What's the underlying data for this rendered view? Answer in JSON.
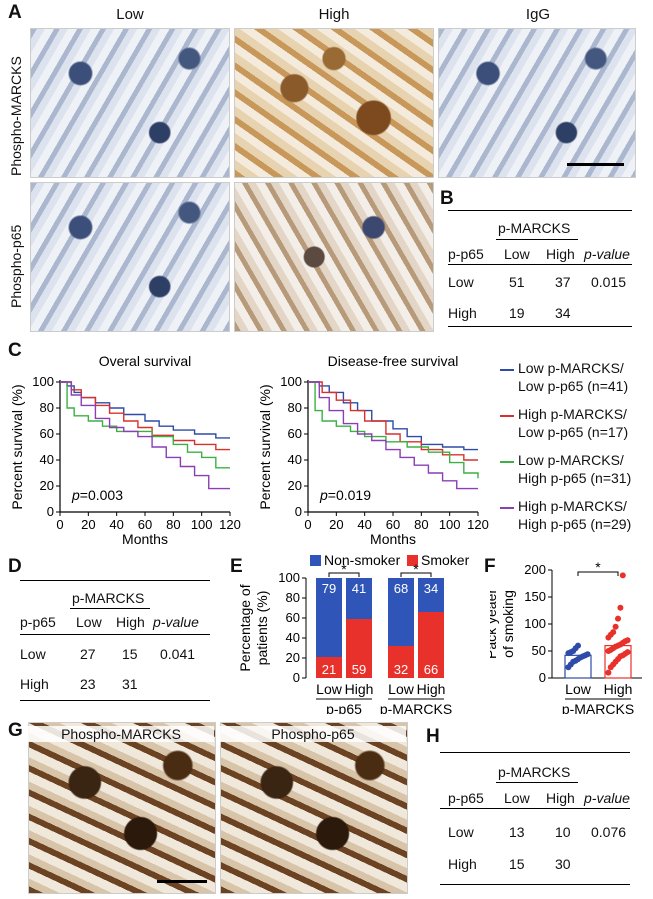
{
  "panels": {
    "A": "A",
    "B": "B",
    "C": "C",
    "D": "D",
    "E": "E",
    "F": "F",
    "G": "G",
    "H": "H"
  },
  "panelA": {
    "col_low": "Low",
    "col_high": "High",
    "col_igg": "IgG",
    "row_marcks": "Phospho-MARCKS",
    "row_p65": "Phospho-p65"
  },
  "tableB": {
    "group": "p-MARCKS",
    "rowhead": "p-p65",
    "col_low": "Low",
    "col_high": "High",
    "col_p": "p-value",
    "rows": [
      {
        "label": "Low",
        "low": "51",
        "high": "37",
        "p": "0.015"
      },
      {
        "label": "High",
        "low": "19",
        "high": "34",
        "p": ""
      }
    ]
  },
  "panelC": {
    "title_os": "Overal survival",
    "title_dfs": "Disease-free survival",
    "ylabel": "Percent survival (%)",
    "xlabel": "Months",
    "p_os": "p=0.003",
    "p_dfs": "p=0.019",
    "legend": [
      {
        "l1": "Low p-MARCKS/",
        "l2": "Low p-p65 (n=41)",
        "color": "#2e4ba8"
      },
      {
        "l1": "High p-MARCKS/",
        "l2": "Low p-p65 (n=17)",
        "color": "#d9302b"
      },
      {
        "l1": "Low p-MARCKS/",
        "l2": "High p-p65 (n=31)",
        "color": "#3cb043"
      },
      {
        "l1": "High p-MARCKS/",
        "l2": "High p-p65 (n=29)",
        "color": "#8a3fb5"
      }
    ]
  },
  "tableD": {
    "group": "p-MARCKS",
    "rowhead": "p-p65",
    "col_low": "Low",
    "col_high": "High",
    "col_p": "p-value",
    "rows": [
      {
        "label": "Low",
        "low": "27",
        "high": "15",
        "p": "0.041"
      },
      {
        "label": "High",
        "low": "23",
        "high": "31",
        "p": ""
      }
    ]
  },
  "panelE": {
    "legend_ns": "Non-smoker",
    "legend_s": "Smoker",
    "ylabel_1": "Percentage of",
    "ylabel_2": "patients (%)",
    "group1": "p-p65",
    "group2": "p-MARCKS",
    "sig": "*"
  },
  "panelF": {
    "ylabel_1": "Pack yeaer",
    "ylabel_2": "of smoking",
    "xgroup": "p-MARCKS",
    "sig": "*"
  },
  "panelG": {
    "label_marcks": "Phospho-MARCKS",
    "label_p65": "Phospho-p65"
  },
  "tableH": {
    "group": "p-MARCKS",
    "rowhead": "p-p65",
    "col_low": "Low",
    "col_high": "High",
    "col_p": "p-value",
    "rows": [
      {
        "label": "Low",
        "low": "13",
        "high": "10",
        "p": "0.076"
      },
      {
        "label": "High",
        "low": "15",
        "high": "30",
        "p": ""
      }
    ]
  },
  "chart_data": [
    {
      "type": "line",
      "title": "Overal survival",
      "xlabel": "Months",
      "ylabel": "Percent survival (%)",
      "xlim": [
        0,
        120
      ],
      "ylim": [
        0,
        100
      ],
      "xticks": [
        0,
        20,
        40,
        60,
        80,
        100,
        120
      ],
      "yticks": [
        0,
        20,
        40,
        60,
        80,
        100
      ],
      "annotation": "p=0.003",
      "series": [
        {
          "name": "Low p-MARCKS/Low p-p65 (n=41)",
          "color": "#2e4ba8",
          "x": [
            0,
            5,
            10,
            15,
            25,
            35,
            45,
            60,
            70,
            80,
            95,
            110,
            120
          ],
          "y": [
            100,
            97,
            92,
            88,
            84,
            80,
            75,
            70,
            66,
            63,
            60,
            57,
            57
          ]
        },
        {
          "name": "High p-MARCKS/Low p-p65 (n=17)",
          "color": "#d9302b",
          "x": [
            0,
            8,
            15,
            25,
            35,
            45,
            55,
            65,
            80,
            95,
            110,
            120
          ],
          "y": [
            100,
            94,
            88,
            82,
            76,
            70,
            65,
            59,
            55,
            52,
            48,
            48
          ]
        },
        {
          "name": "Low p-MARCKS/High p-p65 (n=31)",
          "color": "#3cb043",
          "x": [
            0,
            5,
            10,
            20,
            30,
            40,
            55,
            65,
            80,
            90,
            100,
            110,
            120
          ],
          "y": [
            100,
            80,
            74,
            70,
            66,
            62,
            62,
            58,
            52,
            46,
            42,
            34,
            34
          ]
        },
        {
          "name": "High p-MARCKS/High p-p65 (n=29)",
          "color": "#8a3fb5",
          "x": [
            0,
            8,
            15,
            25,
            35,
            45,
            55,
            65,
            75,
            85,
            95,
            105,
            120
          ],
          "y": [
            100,
            90,
            82,
            72,
            65,
            62,
            58,
            50,
            42,
            35,
            28,
            18,
            18
          ]
        }
      ]
    },
    {
      "type": "line",
      "title": "Disease-free survival",
      "xlabel": "Months",
      "ylabel": "Percent survival (%)",
      "xlim": [
        0,
        120
      ],
      "ylim": [
        0,
        100
      ],
      "xticks": [
        0,
        20,
        40,
        60,
        80,
        100,
        120
      ],
      "yticks": [
        0,
        20,
        40,
        60,
        80,
        100
      ],
      "annotation": "p=0.019",
      "series": [
        {
          "name": "Low p-MARCKS/Low p-p65 (n=41)",
          "color": "#2e4ba8",
          "x": [
            0,
            8,
            15,
            25,
            35,
            45,
            60,
            70,
            80,
            95,
            110,
            120
          ],
          "y": [
            100,
            97,
            92,
            84,
            78,
            70,
            64,
            58,
            52,
            50,
            48,
            48
          ]
        },
        {
          "name": "High p-MARCKS/Low p-p65 (n=17)",
          "color": "#d9302b",
          "x": [
            0,
            10,
            20,
            30,
            40,
            55,
            65,
            80,
            95,
            110,
            120
          ],
          "y": [
            100,
            92,
            86,
            78,
            70,
            60,
            54,
            48,
            44,
            40,
            40
          ]
        },
        {
          "name": "Low p-MARCKS/High p-p65 (n=31)",
          "color": "#3cb043",
          "x": [
            0,
            5,
            10,
            20,
            30,
            40,
            55,
            70,
            85,
            100,
            110,
            120
          ],
          "y": [
            100,
            78,
            70,
            66,
            62,
            58,
            54,
            50,
            46,
            38,
            30,
            26
          ]
        },
        {
          "name": "High p-MARCKS/High p-p65 (n=29)",
          "color": "#8a3fb5",
          "x": [
            0,
            8,
            15,
            25,
            35,
            45,
            55,
            65,
            75,
            85,
            95,
            105,
            120
          ],
          "y": [
            100,
            88,
            78,
            68,
            60,
            55,
            48,
            42,
            36,
            30,
            24,
            18,
            18
          ]
        }
      ]
    },
    {
      "type": "bar",
      "stacked": true,
      "ylabel": "Percentage of patients (%)",
      "ylim": [
        0,
        100
      ],
      "yticks": [
        0,
        20,
        40,
        60,
        80,
        100
      ],
      "categories": [
        "Low",
        "High",
        "Low",
        "High"
      ],
      "groups": [
        "p-p65",
        "p-MARCKS"
      ],
      "series": [
        {
          "name": "Smoker",
          "color": "#e8312a",
          "values": [
            21,
            59,
            32,
            66
          ]
        },
        {
          "name": "Non-smoker",
          "color": "#2f55b8",
          "values": [
            79,
            41,
            68,
            34
          ]
        }
      ]
    },
    {
      "type": "scatter",
      "ylabel": "Pack yeaer of smoking",
      "xlabel": "p-MARCKS",
      "ylim": [
        0,
        200
      ],
      "yticks": [
        0,
        50,
        100,
        150,
        200
      ],
      "categories": [
        "Low",
        "High"
      ],
      "means": [
        42,
        60
      ],
      "series": [
        {
          "name": "Low",
          "color": "#2e4ba8",
          "values": [
            20,
            25,
            30,
            32,
            35,
            38,
            40,
            42,
            44,
            46,
            48,
            50,
            55,
            60
          ]
        },
        {
          "name": "High",
          "color": "#e8312a",
          "values": [
            10,
            20,
            25,
            30,
            35,
            40,
            42,
            45,
            48,
            50,
            52,
            55,
            58,
            60,
            62,
            65,
            68,
            70,
            75,
            80,
            85,
            95,
            110,
            130,
            190
          ]
        }
      ]
    }
  ]
}
